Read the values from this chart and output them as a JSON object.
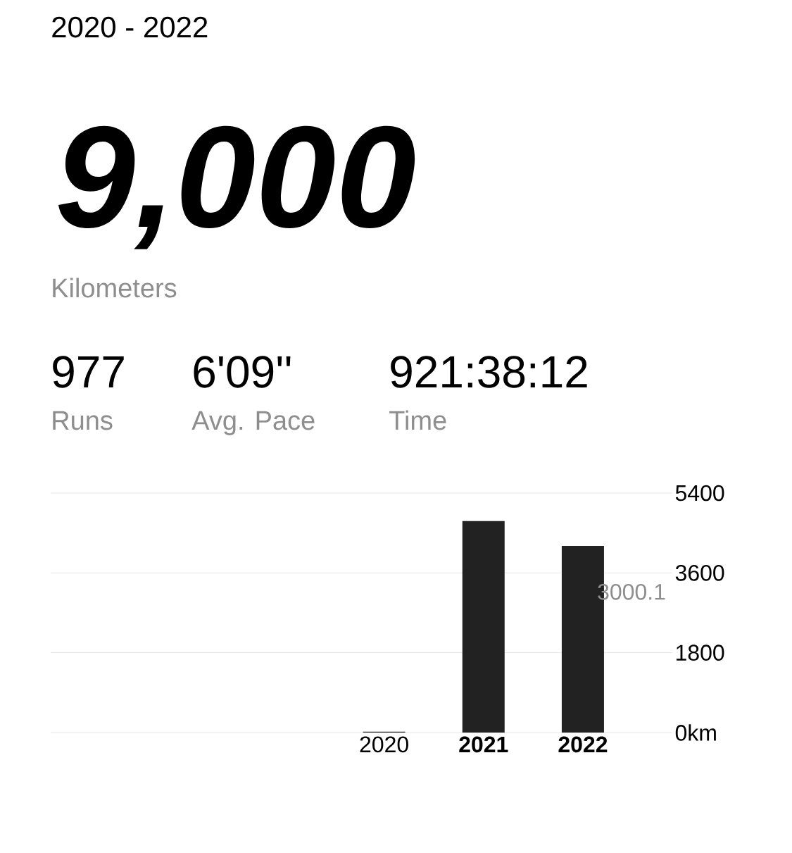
{
  "chart_data": [
    {
      "type": "other",
      "title": "2020 - 2022",
      "annotations": [
        "9,000",
        "Kilometers",
        "977",
        "Runs",
        "6'09''",
        "Avg. Pace",
        "921:38:12",
        "Time"
      ]
    },
    {
      "type": "bar",
      "categories": [
        null,
        null,
        null,
        "2020",
        "**2021**",
        "**2022**"
      ],
      "values": [
        null,
        null,
        null,
        20,
        4770,
        4210
      ],
      "color": "#222222",
      "ylim": [
        0,
        5400
      ],
      "yticks": [
        {
          "value": 0,
          "label": "0km"
        },
        1800,
        3600,
        5400
      ],
      "grid": "y",
      "annotations": [
        "3000.1"
      ]
    }
  ]
}
